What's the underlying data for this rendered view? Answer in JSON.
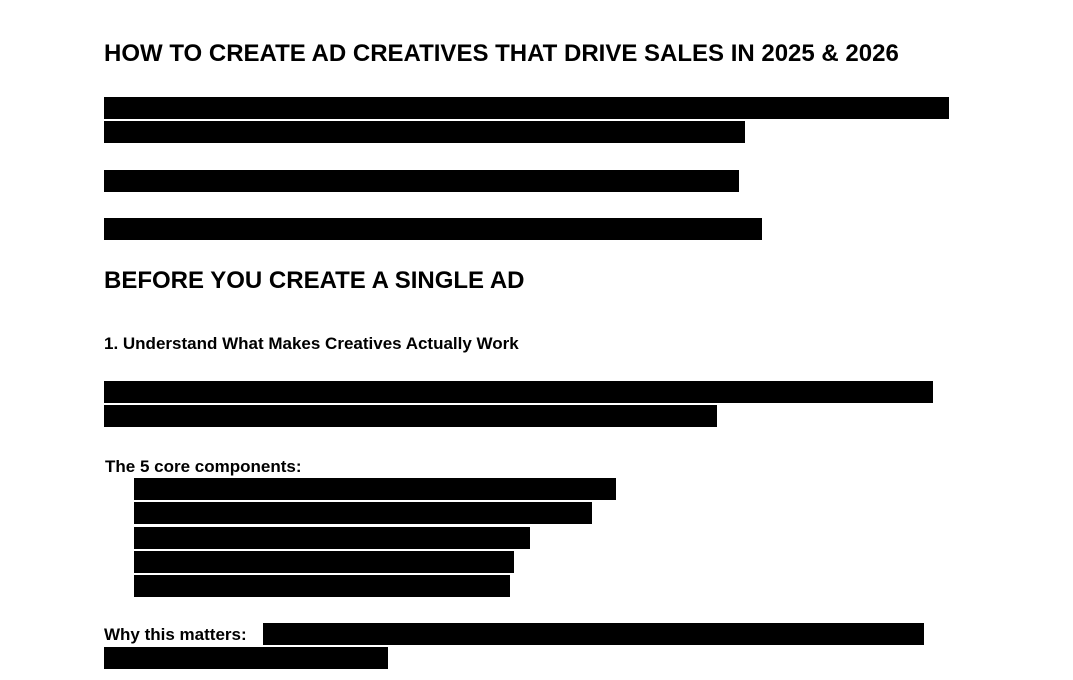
{
  "document": {
    "title": "HOW TO CREATE AD CREATIVES THAT DRIVE SALES IN 2025 & 2026",
    "section_heading": "BEFORE YOU CREATE A SINGLE AD",
    "subsection_heading": "1. Understand What Makes Creatives Actually Work",
    "components_label": "The 5 core components:",
    "why_label": "Why this matters:"
  },
  "redactions": {
    "intro_paragraph_lines": 2,
    "standalone_lines": 2,
    "subsection_paragraph_lines": 2,
    "component_list_items": 5,
    "why_paragraph_lines": 2,
    "fill_color": "#000000"
  }
}
